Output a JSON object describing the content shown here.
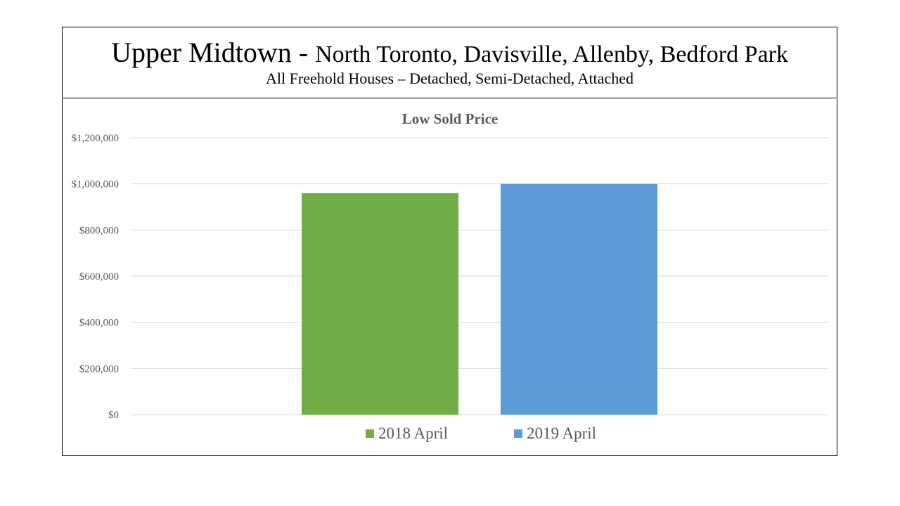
{
  "header": {
    "title_main": "Upper Midtown",
    "title_sep": " - ",
    "title_sub": "North Toronto, Davisville, Allenby, Bedford Park",
    "subtitle": "All Freehold Houses – Detached, Semi-Detached, Attached"
  },
  "chart_data": {
    "type": "bar",
    "title": "Low Sold Price",
    "xlabel": "",
    "ylabel": "",
    "ylim": [
      0,
      1200000
    ],
    "yticks": [
      0,
      200000,
      400000,
      600000,
      800000,
      1000000,
      1200000
    ],
    "ytick_labels": [
      "$0",
      "$200,000",
      "$400,000",
      "$600,000",
      "$800,000",
      "$1,000,000",
      "$1,200,000"
    ],
    "grid": true,
    "legend_position": "bottom",
    "series": [
      {
        "name": "2018 April",
        "value": 960000,
        "color": "#70AD47"
      },
      {
        "name": "2019 April",
        "value": 1000000,
        "color": "#5B9BD5"
      }
    ]
  }
}
